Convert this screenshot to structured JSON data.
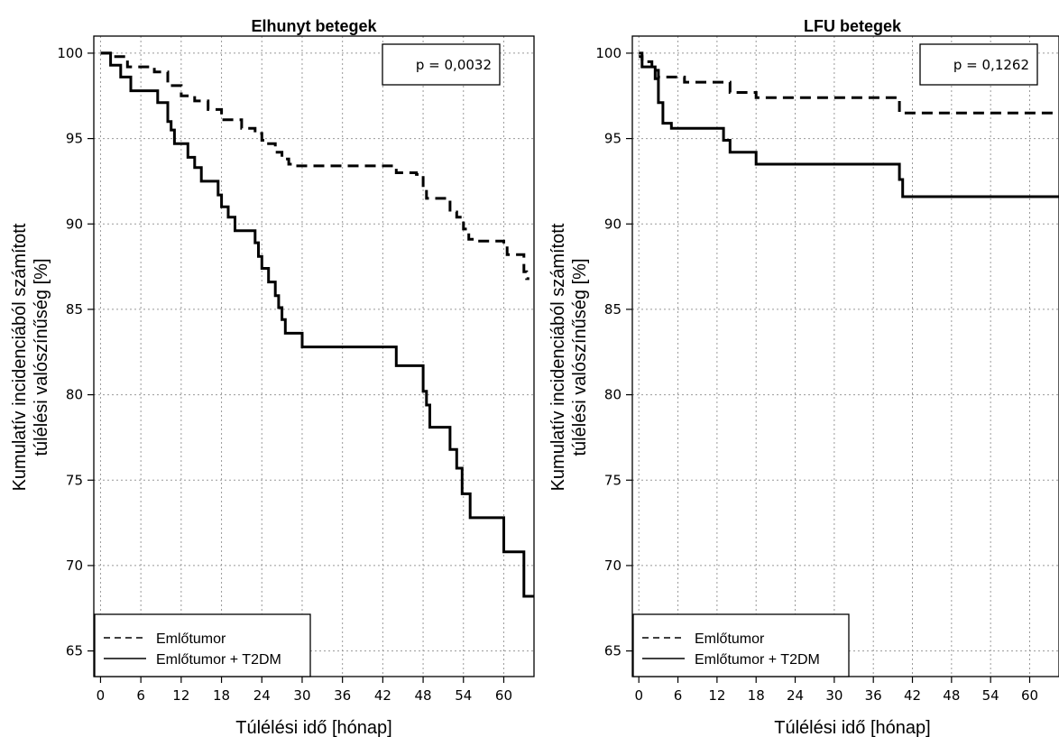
{
  "chart_data": [
    {
      "type": "line",
      "step": true,
      "title": "Elhunyt betegek",
      "xlabel": "Túlélési idő [hónap]",
      "ylabel": [
        "Kumulatív incidenciából számított",
        "túlélési valószínűség [%]"
      ],
      "xticks": [
        0,
        6,
        12,
        18,
        24,
        30,
        36,
        42,
        48,
        54,
        60
      ],
      "yticks": [
        65,
        70,
        75,
        80,
        85,
        90,
        95,
        100
      ],
      "xlim": [
        -1,
        64.5
      ],
      "ylim": [
        63.5,
        101
      ],
      "grid": true,
      "annotation": "p = 0,0032",
      "legend": {
        "position": "bottom-left",
        "entries": [
          "Emlőtumor",
          "Emlőtumor + T2DM"
        ]
      },
      "series": [
        {
          "name": "Emlőtumor",
          "style": "dashed",
          "points": [
            [
              0,
              100
            ],
            [
              2,
              100
            ],
            [
              2,
              99.8
            ],
            [
              4,
              99.8
            ],
            [
              4,
              99.2
            ],
            [
              8,
              99.2
            ],
            [
              8,
              98.9
            ],
            [
              10,
              98.9
            ],
            [
              10,
              98.1
            ],
            [
              12,
              98.1
            ],
            [
              12,
              97.5
            ],
            [
              14,
              97.5
            ],
            [
              14,
              97.2
            ],
            [
              16,
              97.2
            ],
            [
              16,
              96.7
            ],
            [
              18,
              96.7
            ],
            [
              18,
              96.1
            ],
            [
              21,
              96.1
            ],
            [
              21,
              95.6
            ],
            [
              23,
              95.6
            ],
            [
              23,
              95.3
            ],
            [
              24,
              95.3
            ],
            [
              24,
              94.9
            ],
            [
              25,
              94.9
            ],
            [
              25,
              94.7
            ],
            [
              26,
              94.7
            ],
            [
              26,
              94.2
            ],
            [
              27,
              94.2
            ],
            [
              27,
              93.8
            ],
            [
              28,
              93.8
            ],
            [
              28,
              93.5
            ],
            [
              29,
              93.5
            ],
            [
              29,
              93.4
            ],
            [
              44,
              93.4
            ],
            [
              44,
              93.0
            ],
            [
              47,
              93.0
            ],
            [
              47,
              92.9
            ],
            [
              48,
              92.9
            ],
            [
              48,
              92.0
            ],
            [
              48.5,
              92.0
            ],
            [
              48.5,
              91.5
            ],
            [
              52,
              91.5
            ],
            [
              52,
              90.7
            ],
            [
              53,
              90.7
            ],
            [
              53,
              90.4
            ],
            [
              54,
              90.4
            ],
            [
              54,
              89.7
            ],
            [
              54.8,
              89.7
            ],
            [
              54.8,
              89.1
            ],
            [
              56,
              89.1
            ],
            [
              56,
              89.0
            ],
            [
              60,
              89.0
            ],
            [
              60,
              88.7
            ],
            [
              60.5,
              88.7
            ],
            [
              60.5,
              88.2
            ],
            [
              63,
              88.2
            ],
            [
              63,
              87.2
            ],
            [
              63.4,
              87.2
            ],
            [
              63.4,
              86.8
            ],
            [
              63.8,
              86.8
            ]
          ]
        },
        {
          "name": "Emlőtumor + T2DM",
          "style": "solid",
          "points": [
            [
              0,
              100
            ],
            [
              1.5,
              100
            ],
            [
              1.5,
              99.3
            ],
            [
              3,
              99.3
            ],
            [
              3,
              98.6
            ],
            [
              4.5,
              98.6
            ],
            [
              4.5,
              97.8
            ],
            [
              8.5,
              97.8
            ],
            [
              8.5,
              97.1
            ],
            [
              10,
              97.1
            ],
            [
              10,
              96.0
            ],
            [
              10.5,
              96.0
            ],
            [
              10.5,
              95.5
            ],
            [
              11,
              95.5
            ],
            [
              11,
              94.7
            ],
            [
              13,
              94.7
            ],
            [
              13,
              93.9
            ],
            [
              14,
              93.9
            ],
            [
              14,
              93.3
            ],
            [
              15,
              93.3
            ],
            [
              15,
              92.5
            ],
            [
              17.5,
              92.5
            ],
            [
              17.5,
              91.7
            ],
            [
              18,
              91.7
            ],
            [
              18,
              91.0
            ],
            [
              19,
              91.0
            ],
            [
              19,
              90.4
            ],
            [
              20,
              90.4
            ],
            [
              20,
              89.6
            ],
            [
              23,
              89.6
            ],
            [
              23,
              88.9
            ],
            [
              23.5,
              88.9
            ],
            [
              23.5,
              88.1
            ],
            [
              24,
              88.1
            ],
            [
              24,
              87.4
            ],
            [
              25,
              87.4
            ],
            [
              25,
              86.6
            ],
            [
              26,
              86.6
            ],
            [
              26,
              85.8
            ],
            [
              26.5,
              85.8
            ],
            [
              26.5,
              85.1
            ],
            [
              27,
              85.1
            ],
            [
              27,
              84.4
            ],
            [
              27.5,
              84.4
            ],
            [
              27.5,
              83.6
            ],
            [
              30,
              83.6
            ],
            [
              30,
              82.8
            ],
            [
              44,
              82.8
            ],
            [
              44,
              81.7
            ],
            [
              48,
              81.7
            ],
            [
              48,
              80.2
            ],
            [
              48.5,
              80.2
            ],
            [
              48.5,
              79.4
            ],
            [
              49,
              79.4
            ],
            [
              49,
              78.1
            ],
            [
              52,
              78.1
            ],
            [
              52,
              76.8
            ],
            [
              53,
              76.8
            ],
            [
              53,
              75.7
            ],
            [
              53.8,
              75.7
            ],
            [
              53.8,
              74.2
            ],
            [
              55,
              74.2
            ],
            [
              55,
              72.8
            ],
            [
              60,
              72.8
            ],
            [
              60,
              70.8
            ],
            [
              63,
              70.8
            ],
            [
              63,
              68.2
            ],
            [
              64.5,
              68.2
            ]
          ]
        }
      ]
    },
    {
      "type": "line",
      "step": true,
      "title": "LFU betegek",
      "xlabel": "Túlélési idő [hónap]",
      "ylabel": [
        "Kumulatív incidenciából számított",
        "túlélési valószínűség [%]"
      ],
      "xticks": [
        0,
        6,
        12,
        18,
        24,
        30,
        36,
        42,
        48,
        54,
        60
      ],
      "yticks": [
        65,
        70,
        75,
        80,
        85,
        90,
        95,
        100
      ],
      "xlim": [
        -1,
        64.5
      ],
      "ylim": [
        63.5,
        101
      ],
      "grid": true,
      "annotation": "p = 0,1262",
      "legend": {
        "position": "bottom-left",
        "entries": [
          "Emlőtumor",
          "Emlőtumor + T2DM"
        ]
      },
      "series": [
        {
          "name": "Emlőtumor",
          "style": "dashed",
          "points": [
            [
              0,
              100
            ],
            [
              0.5,
              100
            ],
            [
              0.5,
              99.5
            ],
            [
              2,
              99.5
            ],
            [
              2,
              99.0
            ],
            [
              3,
              99.0
            ],
            [
              3,
              98.6
            ],
            [
              7,
              98.6
            ],
            [
              7,
              98.3
            ],
            [
              14,
              98.3
            ],
            [
              14,
              97.7
            ],
            [
              18,
              97.7
            ],
            [
              18,
              97.4
            ],
            [
              40,
              97.4
            ],
            [
              40,
              96.5
            ],
            [
              64.5,
              96.5
            ]
          ]
        },
        {
          "name": "Emlőtumor + T2DM",
          "style": "solid",
          "points": [
            [
              0,
              99.8
            ],
            [
              0.5,
              99.8
            ],
            [
              0.5,
              99.2
            ],
            [
              2.5,
              99.2
            ],
            [
              2.5,
              98.5
            ],
            [
              3,
              98.5
            ],
            [
              3,
              97.1
            ],
            [
              3.7,
              97.1
            ],
            [
              3.7,
              95.9
            ],
            [
              5,
              95.9
            ],
            [
              5,
              95.6
            ],
            [
              13,
              95.6
            ],
            [
              13,
              94.9
            ],
            [
              14,
              94.9
            ],
            [
              14,
              94.2
            ],
            [
              18,
              94.2
            ],
            [
              18,
              93.5
            ],
            [
              40,
              93.5
            ],
            [
              40,
              92.6
            ],
            [
              40.5,
              92.6
            ],
            [
              40.5,
              91.6
            ],
            [
              64.5,
              91.6
            ]
          ]
        }
      ]
    }
  ]
}
